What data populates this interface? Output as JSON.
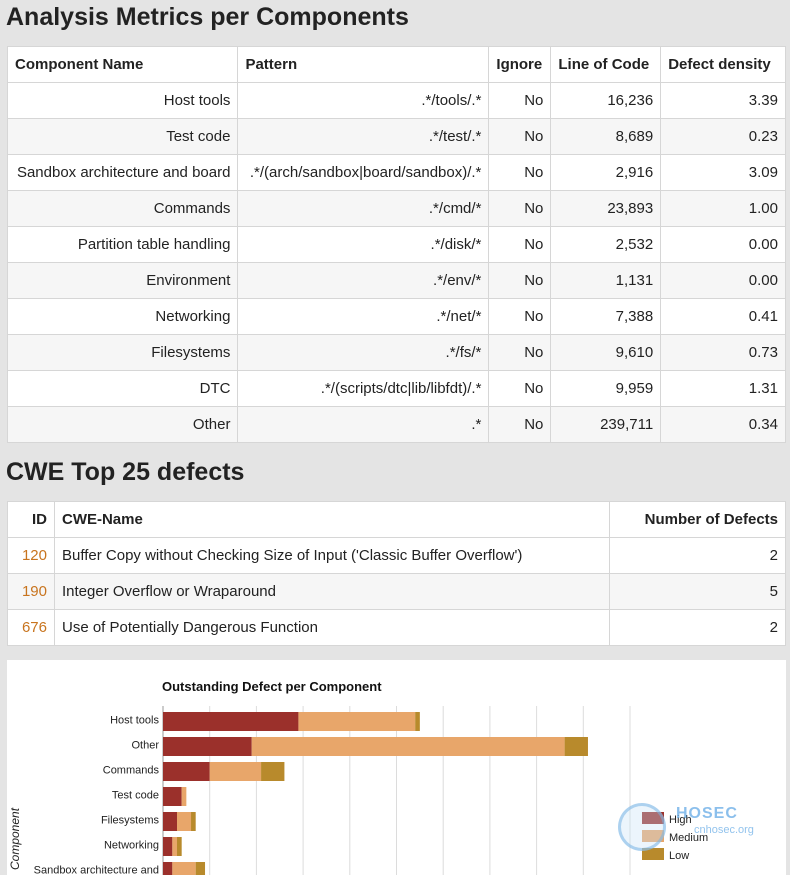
{
  "sections": {
    "analysis_title": "Analysis Metrics per Components",
    "cwe_title": "CWE Top 25 defects"
  },
  "metrics": {
    "headers": [
      "Component Name",
      "Pattern",
      "Ignore",
      "Line of Code",
      "Defect density"
    ],
    "rows": [
      {
        "name": "Host tools",
        "pattern": ".*/tools/.*",
        "ignore": "No",
        "loc": "16,236",
        "density": "3.39"
      },
      {
        "name": "Test code",
        "pattern": ".*/test/.*",
        "ignore": "No",
        "loc": "8,689",
        "density": "0.23"
      },
      {
        "name": "Sandbox architecture and board",
        "pattern": ".*/(arch/sandbox|board/sandbox)/.*",
        "ignore": "No",
        "loc": "2,916",
        "density": "3.09"
      },
      {
        "name": "Commands",
        "pattern": ".*/cmd/*",
        "ignore": "No",
        "loc": "23,893",
        "density": "1.00"
      },
      {
        "name": "Partition table handling",
        "pattern": ".*/disk/*",
        "ignore": "No",
        "loc": "2,532",
        "density": "0.00"
      },
      {
        "name": "Environment",
        "pattern": ".*/env/*",
        "ignore": "No",
        "loc": "1,131",
        "density": "0.00"
      },
      {
        "name": "Networking",
        "pattern": ".*/net/*",
        "ignore": "No",
        "loc": "7,388",
        "density": "0.41"
      },
      {
        "name": "Filesystems",
        "pattern": ".*/fs/*",
        "ignore": "No",
        "loc": "9,610",
        "density": "0.73"
      },
      {
        "name": "DTC",
        "pattern": ".*/(scripts/dtc|lib/libfdt)/.*",
        "ignore": "No",
        "loc": "9,959",
        "density": "1.31"
      },
      {
        "name": "Other",
        "pattern": ".*",
        "ignore": "No",
        "loc": "239,711",
        "density": "0.34"
      }
    ]
  },
  "cwe": {
    "headers": [
      "ID",
      "CWE-Name",
      "Number of Defects"
    ],
    "rows": [
      {
        "id": "120",
        "name": "Buffer Copy without Checking Size of Input ('Classic Buffer Overflow')",
        "count": "2"
      },
      {
        "id": "190",
        "name": "Integer Overflow or Wraparound",
        "count": "5"
      },
      {
        "id": "676",
        "name": "Use of Potentially Dangerous Function",
        "count": "2"
      }
    ]
  },
  "watermark": {
    "brand": "HOSEC",
    "domain": "cnhosec.org"
  },
  "chart_data": {
    "type": "bar",
    "orientation": "horizontal",
    "stacked": true,
    "title": "Outstanding Defect per Component",
    "ylabel": "Component",
    "categories": [
      "Host tools",
      "Other",
      "Commands",
      "Test code",
      "Filesystems",
      "Networking",
      "Sandbox architecture and"
    ],
    "series": [
      {
        "name": "High",
        "color": "#9b302b",
        "values": [
          29,
          19,
          10,
          4,
          3,
          2,
          2
        ]
      },
      {
        "name": "Medium",
        "color": "#e8a66a",
        "values": [
          25,
          67,
          11,
          1,
          3,
          1,
          5
        ]
      },
      {
        "name": "Low",
        "color": "#b88a2c",
        "values": [
          1,
          5,
          5,
          0,
          1,
          1,
          2
        ]
      }
    ],
    "xlim": [
      0,
      100
    ],
    "grid": true,
    "legend_position": "right"
  }
}
